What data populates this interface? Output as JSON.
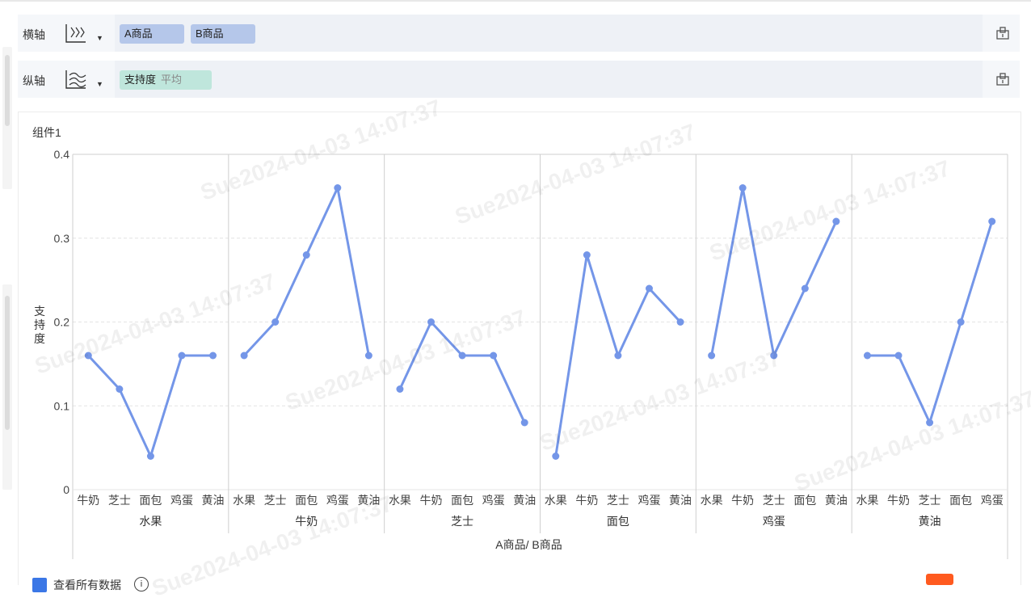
{
  "shelves": {
    "x": {
      "label": "横轴",
      "fields": [
        "A商品",
        "B商品"
      ]
    },
    "y": {
      "label": "纵轴",
      "fields": [
        {
          "name": "支持度",
          "agg": "平均"
        }
      ]
    }
  },
  "component_title": "组件1",
  "footer": {
    "checkbox_label": "查看所有数据"
  },
  "watermark": "Sue2024-04-03 14:07:37",
  "colors": {
    "line": "#7496e8",
    "pill_blue": "#b5c7ea",
    "pill_green": "#bfe6dc"
  },
  "chart_data": {
    "type": "line",
    "xlabel": "A商品/ B商品",
    "ylabel": "支持度",
    "ylim": [
      0,
      0.4
    ],
    "yticks": [
      "0",
      "0.1",
      "0.2",
      "0.3",
      "0.4"
    ],
    "ytick_values": [
      0,
      0.1,
      0.2,
      0.3,
      0.4
    ],
    "grid": true,
    "groups": [
      {
        "name": "水果",
        "categories": [
          "牛奶",
          "芝士",
          "面包",
          "鸡蛋",
          "黄油"
        ],
        "values": [
          0.16,
          0.12,
          0.04,
          0.16,
          0.16
        ]
      },
      {
        "name": "牛奶",
        "categories": [
          "水果",
          "芝士",
          "面包",
          "鸡蛋",
          "黄油"
        ],
        "values": [
          0.16,
          0.2,
          0.28,
          0.36,
          0.16
        ]
      },
      {
        "name": "芝士",
        "categories": [
          "水果",
          "牛奶",
          "面包",
          "鸡蛋",
          "黄油"
        ],
        "values": [
          0.12,
          0.2,
          0.16,
          0.16,
          0.08
        ]
      },
      {
        "name": "面包",
        "categories": [
          "水果",
          "牛奶",
          "芝士",
          "鸡蛋",
          "黄油"
        ],
        "values": [
          0.04,
          0.28,
          0.16,
          0.24,
          0.2
        ]
      },
      {
        "name": "鸡蛋",
        "categories": [
          "水果",
          "牛奶",
          "芝士",
          "面包",
          "黄油"
        ],
        "values": [
          0.16,
          0.36,
          0.16,
          0.24,
          0.32
        ]
      },
      {
        "name": "黄油",
        "categories": [
          "水果",
          "牛奶",
          "芝士",
          "面包",
          "鸡蛋"
        ],
        "values": [
          0.16,
          0.16,
          0.08,
          0.2,
          0.32
        ]
      }
    ]
  }
}
